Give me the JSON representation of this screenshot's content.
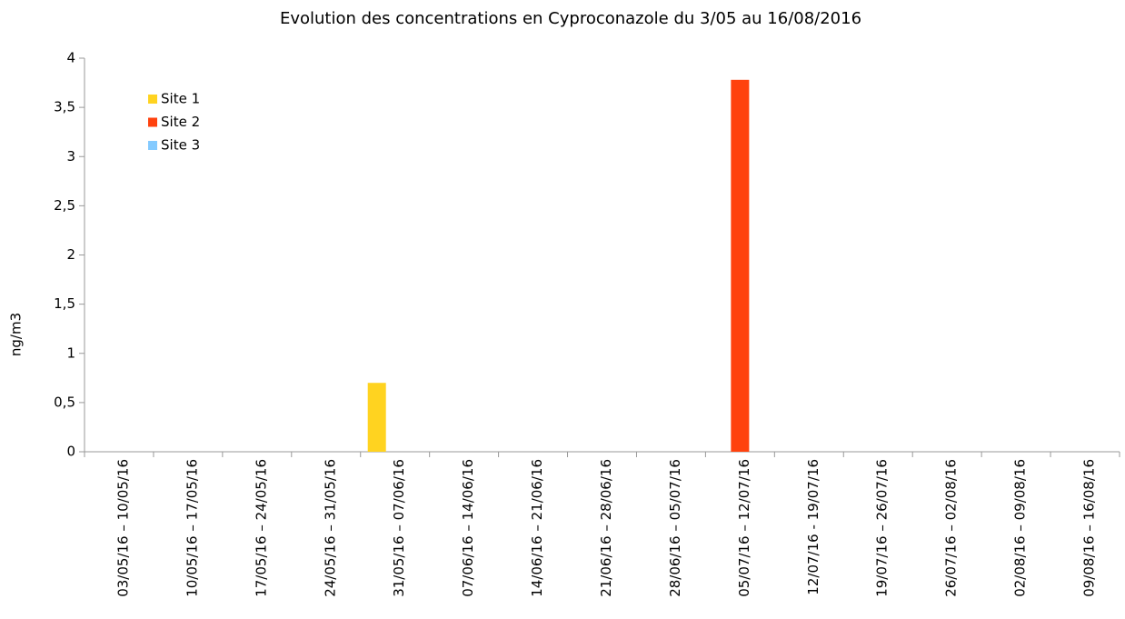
{
  "chart_data": {
    "type": "bar",
    "title": "Evolution des concentrations en Cyproconazole du 3/05 au 16/08/2016",
    "y_label": "ng/m3",
    "categories": [
      "03/05/16 – 10/05/16",
      "10/05/16 – 17/05/16",
      "17/05/16 – 24/05/16",
      "24/05/16 – 31/05/16",
      "31/05/16 – 07/06/16",
      "07/06/16 – 14/06/16",
      "14/06/16 – 21/06/16",
      "21/06/16 – 28/06/16",
      "28/06/16 – 05/07/16",
      "05/07/16 – 12/07/16",
      "12/07/16 - 19/07/16",
      "19/07/16 – 26/07/16",
      "26/07/16 – 02/08/16",
      "02/08/16 – 09/08/16",
      "09/08/16 – 16/08/16"
    ],
    "series": [
      {
        "name": "Site 1",
        "color": "#ffd320",
        "values": [
          0,
          0,
          0,
          0,
          0.7,
          0,
          0,
          0,
          0,
          0,
          0,
          0,
          0,
          0,
          0
        ]
      },
      {
        "name": "Site 2",
        "color": "#ff420e",
        "values": [
          0,
          0,
          0,
          0,
          0,
          0,
          0,
          0,
          0,
          3.78,
          0,
          0,
          0,
          0,
          0
        ]
      },
      {
        "name": "Site 3",
        "color": "#83caff",
        "values": [
          0,
          0,
          0,
          0,
          0,
          0,
          0,
          0,
          0,
          0,
          0,
          0,
          0,
          0,
          0
        ]
      }
    ],
    "ylim": [
      0,
      4
    ],
    "yticks": [
      0,
      {
        "value": 0.5,
        "label": "0,5"
      },
      1,
      {
        "value": 1.5,
        "label": "1,5"
      },
      2,
      {
        "value": 2.5,
        "label": "2,5"
      },
      3,
      {
        "value": 3.5,
        "label": "3,5"
      },
      4
    ],
    "legend": "top-left"
  }
}
